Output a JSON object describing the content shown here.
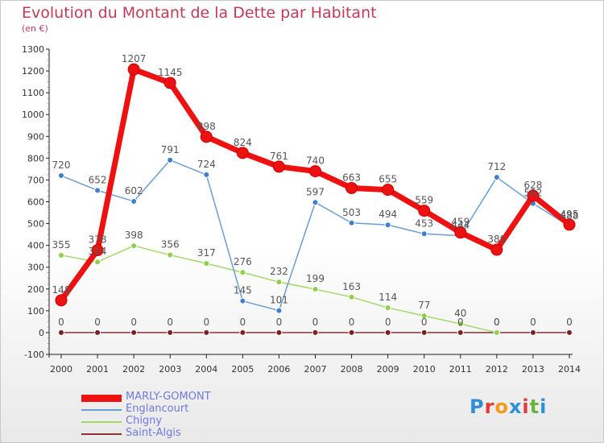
{
  "chart_title": "Evolution du Montant de la Dette par Habitant",
  "chart_subtitle": "(en €)",
  "logo": {
    "text": "Proxiti",
    "letter_colors": [
      "#2f8fd8",
      "#e23b3b",
      "#f39a1b",
      "#2f8fd8",
      "#e23b3b",
      "#6ab33f",
      "#2f8fd8"
    ]
  },
  "chart_data": {
    "type": "line",
    "x": [
      2000,
      2001,
      2002,
      2003,
      2004,
      2005,
      2006,
      2007,
      2008,
      2009,
      2010,
      2011,
      2012,
      2013,
      2014
    ],
    "ylim": [
      -100,
      1300
    ],
    "yticks": [
      -100,
      0,
      100,
      200,
      300,
      400,
      500,
      600,
      700,
      800,
      900,
      1000,
      1100,
      1200,
      1300
    ],
    "grid": false,
    "legend_position": "bottom-left",
    "series": [
      {
        "name": "MARLY-GOMONT",
        "color": "#ee1111",
        "values": [
          148,
          378,
          1207,
          1145,
          898,
          824,
          761,
          740,
          663,
          655,
          559,
          459,
          380,
          628,
          495
        ]
      },
      {
        "name": "Englancourt",
        "color": "#6a9fd4",
        "values": [
          720,
          652,
          602,
          791,
          724,
          145,
          101,
          597,
          503,
          494,
          453,
          444,
          712,
          592,
          488
        ]
      },
      {
        "name": "Chigny",
        "color": "#a5d86a",
        "values": [
          355,
          324,
          398,
          356,
          317,
          276,
          232,
          199,
          163,
          114,
          77,
          40,
          0,
          null,
          null
        ]
      },
      {
        "name": "Saint-Algis",
        "color": "#8a3535",
        "values": [
          0,
          0,
          0,
          0,
          0,
          0,
          0,
          0,
          0,
          0,
          0,
          0,
          0,
          0,
          0
        ]
      }
    ]
  }
}
